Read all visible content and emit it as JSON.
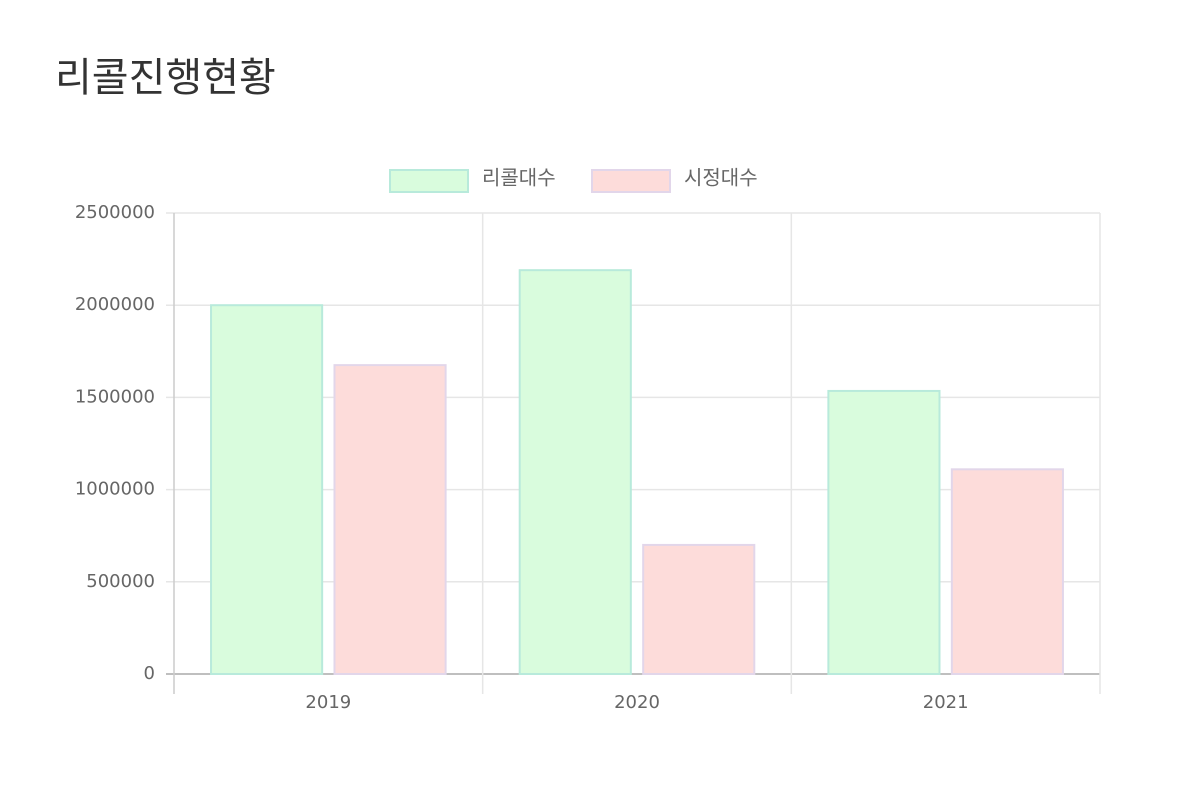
{
  "chart_data": {
    "type": "bar",
    "title": "리콜진행현황",
    "categories": [
      "2019",
      "2020",
      "2021"
    ],
    "series": [
      {
        "name": "리콜대수",
        "color": "#d9fcdd",
        "border_color": "#b8eadb",
        "values": [
          2000000,
          2190000,
          1535000
        ]
      },
      {
        "name": "시정대수",
        "color": "#fddcda",
        "border_color": "#e2d6ea",
        "values": [
          1675000,
          700000,
          1110000
        ]
      }
    ],
    "ylim": [
      0,
      2500000
    ],
    "yticks": [
      0,
      500000,
      1000000,
      1500000,
      2000000,
      2500000
    ],
    "grid": true,
    "legend": "top"
  }
}
